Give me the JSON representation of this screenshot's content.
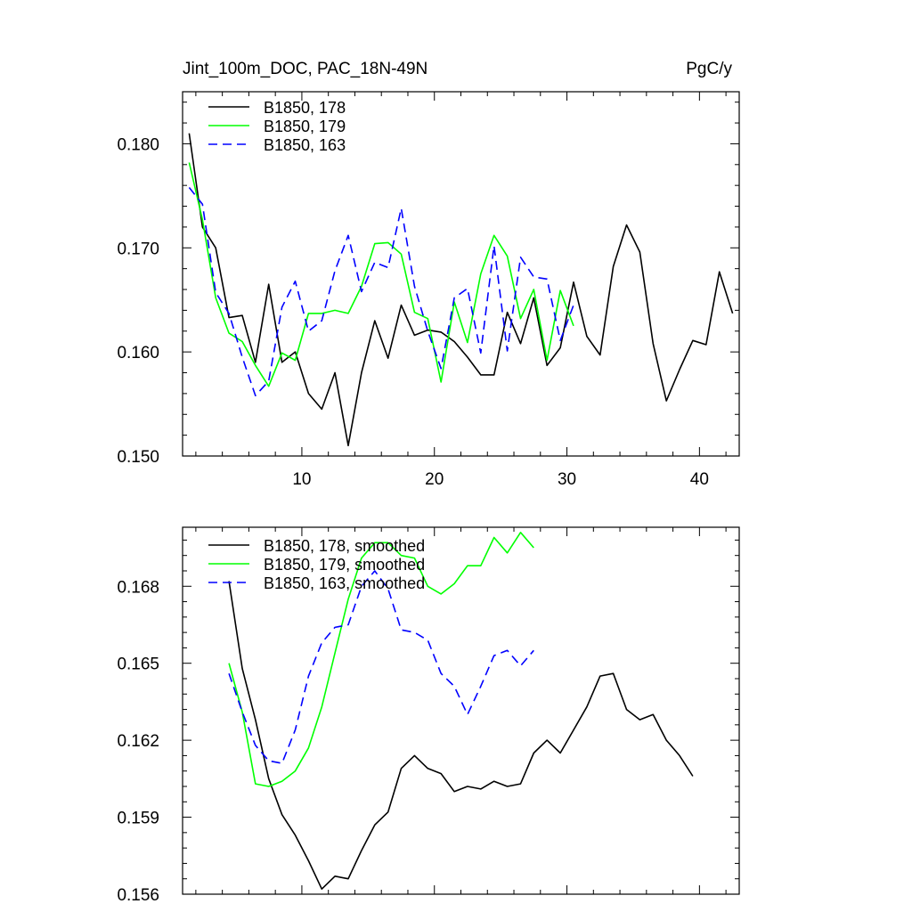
{
  "chart_data": [
    {
      "type": "line",
      "title": "Jint_100m_DOC, PAC_18N-49N",
      "units": "PgC/y",
      "xlim": [
        1,
        43
      ],
      "ylim": [
        0.15,
        0.185
      ],
      "xticks": [
        10,
        20,
        30,
        40
      ],
      "xtick_labels": [
        "10",
        "20",
        "30",
        "40"
      ],
      "yticks": [
        0.15,
        0.16,
        0.17,
        0.18
      ],
      "ytick_labels": [
        "0.150",
        "0.160",
        "0.170",
        "0.180"
      ],
      "show_x_labels": true,
      "legend_position": "top-left",
      "series": [
        {
          "name": "B1850, 178",
          "color": "#000000",
          "dash": "solid",
          "x": [
            1.5,
            2.5,
            3.5,
            4.5,
            5.5,
            6.5,
            7.5,
            8.5,
            9.5,
            10.5,
            11.5,
            12.5,
            13.5,
            14.5,
            15.5,
            16.5,
            17.5,
            18.5,
            19.5,
            20.5,
            21.5,
            22.5,
            23.5,
            24.5,
            25.5,
            26.5,
            27.5,
            28.5,
            29.5,
            30.5,
            31.5,
            32.5,
            33.5,
            34.5,
            35.5,
            36.5,
            37.5,
            38.5,
            39.5,
            40.5,
            41.5,
            42.5
          ],
          "values": [
            0.181,
            0.172,
            0.17,
            0.1633,
            0.1635,
            0.159,
            0.1665,
            0.159,
            0.16,
            0.156,
            0.1545,
            0.158,
            0.151,
            0.158,
            0.163,
            0.1594,
            0.1645,
            0.1616,
            0.1621,
            0.1619,
            0.161,
            0.1595,
            0.1578,
            0.1578,
            0.1638,
            0.1608,
            0.1652,
            0.1587,
            0.1604,
            0.1667,
            0.1615,
            0.1597,
            0.1682,
            0.1722,
            0.1696,
            0.1608,
            0.1553,
            0.1583,
            0.1611,
            0.1607,
            0.1677,
            0.1637
          ]
        },
        {
          "name": "B1850, 179",
          "color": "#00ff00",
          "dash": "solid",
          "x": [
            1.5,
            2.5,
            3.5,
            4.5,
            5.5,
            6.5,
            7.5,
            8.5,
            9.5,
            10.5,
            11.5,
            12.5,
            13.5,
            14.5,
            15.5,
            16.5,
            17.5,
            18.5,
            19.5,
            20.5,
            21.5,
            22.5,
            23.5,
            24.5,
            25.5,
            26.5,
            27.5,
            28.5,
            29.5,
            30.5
          ],
          "values": [
            0.1782,
            0.1727,
            0.1652,
            0.1618,
            0.161,
            0.1587,
            0.1567,
            0.1599,
            0.1592,
            0.1637,
            0.1637,
            0.164,
            0.1637,
            0.1663,
            0.1704,
            0.1705,
            0.1694,
            0.1638,
            0.1632,
            0.1571,
            0.1648,
            0.1609,
            0.1675,
            0.1712,
            0.1692,
            0.1632,
            0.166,
            0.1592,
            0.1659,
            0.1625
          ]
        },
        {
          "name": "B1850, 163",
          "color": "#0000ff",
          "dash": "dashed",
          "x": [
            1.5,
            2.5,
            3.5,
            4.5,
            5.5,
            6.5,
            7.5,
            8.5,
            9.5,
            10.5,
            11.5,
            12.5,
            13.5,
            14.5,
            15.5,
            16.5,
            17.5,
            18.5,
            19.5,
            20.5,
            21.5,
            22.5,
            23.5,
            24.5,
            25.5,
            26.5,
            27.5,
            28.5,
            29.5,
            30.5
          ],
          "values": [
            0.1758,
            0.1742,
            0.1657,
            0.1637,
            0.1595,
            0.1558,
            0.1572,
            0.1643,
            0.1668,
            0.162,
            0.163,
            0.1678,
            0.1712,
            0.1658,
            0.1686,
            0.1681,
            0.1738,
            0.1663,
            0.162,
            0.1584,
            0.1652,
            0.1661,
            0.1599,
            0.1702,
            0.1601,
            0.1691,
            0.1672,
            0.167,
            0.1611,
            0.1645
          ]
        }
      ]
    },
    {
      "type": "line",
      "title": "",
      "xlim": [
        1,
        43
      ],
      "ylim": [
        0.156,
        0.1703
      ],
      "xticks": [
        10,
        20,
        30,
        40
      ],
      "xtick_labels": [],
      "yticks": [
        0.156,
        0.159,
        0.162,
        0.165,
        0.168
      ],
      "ytick_labels": [
        "0.156",
        "0.159",
        "0.162",
        "0.165",
        "0.168"
      ],
      "show_x_labels": false,
      "legend_position": "top-left",
      "series": [
        {
          "name": "B1850, 178, smoothed",
          "color": "#000000",
          "dash": "solid",
          "x": [
            4.5,
            5.5,
            6.5,
            7.5,
            8.5,
            9.5,
            10.5,
            11.5,
            12.5,
            13.5,
            14.5,
            15.5,
            16.5,
            17.5,
            18.5,
            19.5,
            20.5,
            21.5,
            22.5,
            23.5,
            24.5,
            25.5,
            26.5,
            27.5,
            28.5,
            29.5,
            30.5,
            31.5,
            32.5,
            33.5,
            34.5,
            35.5,
            36.5,
            37.5,
            38.5,
            39.5
          ],
          "values": [
            0.1682,
            0.1648,
            0.1628,
            0.1605,
            0.1591,
            0.1583,
            0.1573,
            0.1562,
            0.1567,
            0.1566,
            0.1577,
            0.1587,
            0.1592,
            0.1609,
            0.1614,
            0.1609,
            0.1607,
            0.16,
            0.1602,
            0.1601,
            0.1604,
            0.1602,
            0.1603,
            0.1615,
            0.162,
            0.1615,
            0.1624,
            0.1633,
            0.1645,
            0.1646,
            0.1632,
            0.1628,
            0.163,
            0.162,
            0.1614,
            0.1606
          ]
        },
        {
          "name": "B1850, 179, smoothed",
          "color": "#00ff00",
          "dash": "solid",
          "x": [
            4.5,
            5.5,
            6.5,
            7.5,
            8.5,
            9.5,
            10.5,
            11.5,
            12.5,
            13.5,
            14.5,
            15.5,
            16.5,
            17.5,
            18.5,
            19.5,
            20.5,
            21.5,
            22.5,
            23.5,
            24.5,
            25.5,
            26.5,
            27.5
          ],
          "values": [
            0.165,
            0.1631,
            0.1603,
            0.1602,
            0.1604,
            0.1608,
            0.1617,
            0.1633,
            0.1654,
            0.1675,
            0.1691,
            0.1697,
            0.1697,
            0.1692,
            0.1691,
            0.168,
            0.1677,
            0.1681,
            0.1688,
            0.1688,
            0.1699,
            0.1693,
            0.1701,
            0.1695
          ]
        },
        {
          "name": "B1850, 163, smoothed",
          "color": "#0000ff",
          "dash": "dashed",
          "x": [
            4.5,
            5.5,
            6.5,
            7.5,
            8.5,
            9.5,
            10.5,
            11.5,
            12.5,
            13.5,
            14.5,
            15.5,
            16.5,
            17.5,
            18.5,
            19.5,
            20.5,
            21.5,
            22.5,
            23.5,
            24.5,
            25.5,
            26.5,
            27.5
          ],
          "values": [
            0.1646,
            0.1631,
            0.1618,
            0.1612,
            0.1611,
            0.1624,
            0.1645,
            0.1658,
            0.1664,
            0.1665,
            0.168,
            0.1686,
            0.1679,
            0.1663,
            0.1662,
            0.1659,
            0.1646,
            0.1641,
            0.163,
            0.1641,
            0.1653,
            0.1655,
            0.1649,
            0.1655
          ]
        }
      ]
    }
  ]
}
